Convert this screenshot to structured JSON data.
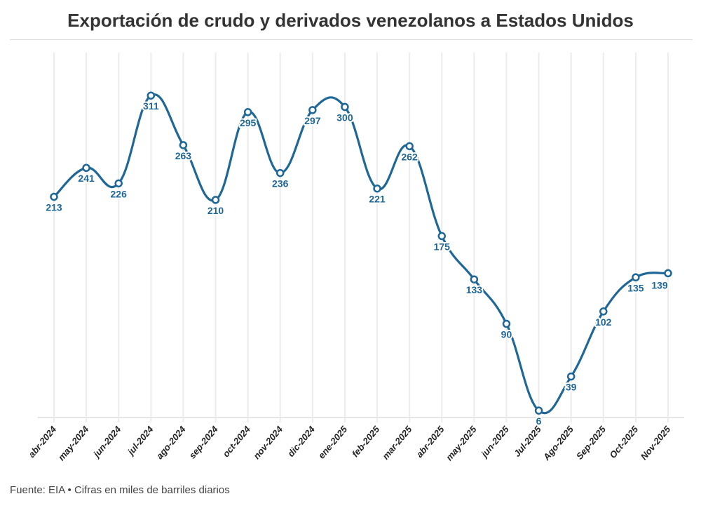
{
  "title": "Exportación de crudo y derivados venezolanos a Estados Unidos",
  "source": "Fuente: EIA • Cifras en miles de barriles diarios",
  "colors": {
    "line": "#1f6796",
    "grid": "#ececec",
    "labels": "#1f6796"
  },
  "chart_data": {
    "type": "line",
    "title": "Exportación de crudo y derivados venezolanos a Estados Unidos",
    "xlabel": "",
    "ylabel": "",
    "categories": [
      "abr-2024",
      "may-2024",
      "jun-2024",
      "jul-2024",
      "ago-2024",
      "sep-2024",
      "oct-2024",
      "nov-2024",
      "dic-2024",
      "ene-2025",
      "feb-2025",
      "mar-2025",
      "abr-2025",
      "may-2025",
      "jun-2025",
      "Jul-2025",
      "Ago-2025",
      "Sep-2025",
      "Oct-2025",
      "Nov-2025"
    ],
    "series": [
      {
        "values": [
          213,
          241,
          226,
          311,
          263,
          210,
          295,
          236,
          297,
          300,
          221,
          262,
          175,
          133,
          90,
          6,
          39,
          102,
          135,
          139
        ]
      }
    ],
    "ylim": [
      0,
      320
    ],
    "grid": "vertical",
    "smooth": true,
    "data_labels": true
  }
}
